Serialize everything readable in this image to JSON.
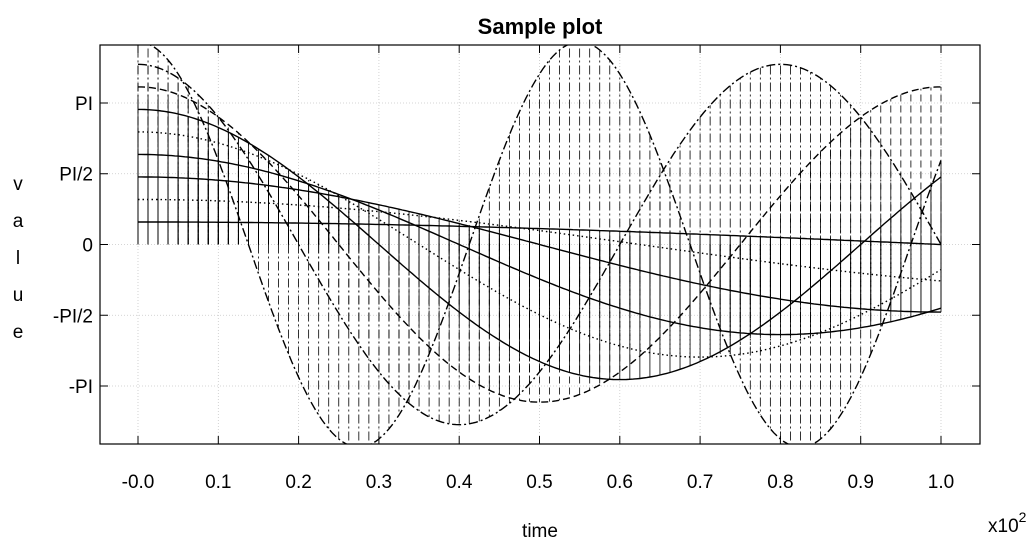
{
  "chart_data": {
    "type": "line",
    "title": "Sample plot",
    "xlabel": "time",
    "ylabel": "value",
    "x_multiplier": "x10",
    "x_multiplier_exp": "2",
    "xlim": [
      -0.0,
      1.0
    ],
    "ylim": [
      -3.6,
      3.6
    ],
    "x_ticks": [
      {
        "v": 0.0,
        "label": "-0.0"
      },
      {
        "v": 0.1,
        "label": "0.1"
      },
      {
        "v": 0.2,
        "label": "0.2"
      },
      {
        "v": 0.3,
        "label": "0.3"
      },
      {
        "v": 0.4,
        "label": "0.4"
      },
      {
        "v": 0.5,
        "label": "0.5"
      },
      {
        "v": 0.6,
        "label": "0.6"
      },
      {
        "v": 0.7,
        "label": "0.7"
      },
      {
        "v": 0.8,
        "label": "0.8"
      },
      {
        "v": 0.9,
        "label": "0.9"
      },
      {
        "v": 1.0,
        "label": "1.0"
      }
    ],
    "y_ticks": [
      {
        "v": 3.14159,
        "label": "PI"
      },
      {
        "v": 1.5708,
        "label": "PI/2"
      },
      {
        "v": 0,
        "label": "0"
      },
      {
        "v": -1.5708,
        "label": "-PI/2"
      },
      {
        "v": -3.14159,
        "label": "-PI"
      }
    ],
    "grid": true,
    "legend": "none",
    "series": [
      {
        "amp": 0.5,
        "period": 4.0,
        "style": "solid",
        "stems": true
      },
      {
        "amp": 1.0,
        "period": 2.5,
        "style": "dotted",
        "stems": true
      },
      {
        "amp": 1.5,
        "period": 2.0,
        "style": "solid",
        "stems": true
      },
      {
        "amp": 2.0,
        "period": 1.6,
        "style": "solid",
        "stems": true
      },
      {
        "amp": 2.5,
        "period": 1.4,
        "style": "dotted",
        "stems": true
      },
      {
        "amp": 3.0,
        "period": 1.2,
        "style": "solid",
        "stems": true
      },
      {
        "amp": 3.5,
        "period": 1.0,
        "style": "dashed",
        "stems": true
      },
      {
        "amp": 4.0,
        "period": 0.8,
        "style": "dashdot",
        "stems": true
      },
      {
        "amp": 4.5,
        "period": 0.55,
        "style": "dashdot",
        "stems": true
      }
    ]
  }
}
